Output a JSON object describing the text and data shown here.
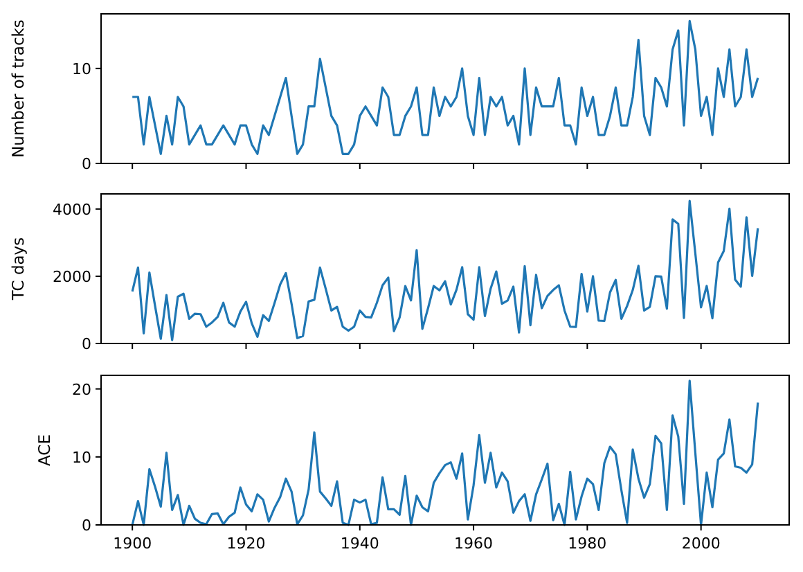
{
  "chart_data": [
    {
      "type": "line",
      "ylabel": "Number of tracks",
      "tick_labels": "y",
      "xlim": [
        1894.5,
        2015.5
      ],
      "ylim": [
        0,
        15.75
      ],
      "xticks": [
        {
          "value": 1900,
          "label": null
        },
        {
          "value": 1920,
          "label": null
        },
        {
          "value": 1940,
          "label": null
        },
        {
          "value": 1960,
          "label": null
        },
        {
          "value": 1980,
          "label": null
        },
        {
          "value": 2000,
          "label": null
        }
      ],
      "yticks": [
        0,
        10
      ],
      "x": [
        1900,
        1901,
        1902,
        1903,
        1904,
        1905,
        1906,
        1907,
        1908,
        1909,
        1910,
        1911,
        1912,
        1913,
        1914,
        1915,
        1916,
        1917,
        1918,
        1919,
        1920,
        1921,
        1922,
        1923,
        1924,
        1925,
        1926,
        1927,
        1928,
        1929,
        1930,
        1931,
        1932,
        1933,
        1934,
        1935,
        1936,
        1937,
        1938,
        1939,
        1940,
        1941,
        1942,
        1943,
        1944,
        1945,
        1946,
        1947,
        1948,
        1949,
        1950,
        1951,
        1952,
        1953,
        1954,
        1955,
        1956,
        1957,
        1958,
        1959,
        1960,
        1961,
        1962,
        1963,
        1964,
        1965,
        1966,
        1967,
        1968,
        1969,
        1970,
        1971,
        1972,
        1973,
        1974,
        1975,
        1976,
        1977,
        1978,
        1979,
        1980,
        1981,
        1982,
        1983,
        1984,
        1985,
        1986,
        1987,
        1988,
        1989,
        1990,
        1991,
        1992,
        1993,
        1994,
        1995,
        1996,
        1997,
        1998,
        1999,
        2000,
        2001,
        2002,
        2003,
        2004,
        2005,
        2006,
        2007,
        2008,
        2009,
        2010
      ],
      "series": [
        {
          "color": "#1f77b4",
          "values": [
            7,
            7,
            2,
            7,
            4,
            1,
            5,
            2,
            7,
            6,
            2,
            3,
            4,
            2,
            2,
            3,
            4,
            3,
            2,
            4,
            4,
            2,
            1,
            4,
            3,
            5,
            7,
            9,
            5,
            1,
            2,
            6,
            6,
            11,
            8,
            5,
            4,
            1,
            1,
            2,
            5,
            6,
            5,
            4,
            8,
            7,
            3,
            3,
            5,
            6,
            8,
            3,
            3,
            8,
            5,
            7,
            6,
            7,
            10,
            5,
            3,
            9,
            3,
            7,
            6,
            7,
            4,
            5,
            2,
            10,
            3,
            8,
            6,
            6,
            6,
            9,
            4,
            4,
            2,
            8,
            5,
            7,
            3,
            3,
            5,
            8,
            4,
            4,
            7,
            13,
            5,
            3,
            9,
            8,
            6,
            12,
            14,
            4,
            15,
            12,
            5,
            7,
            3,
            10,
            7,
            12,
            6,
            7,
            12,
            7,
            9
          ]
        }
      ]
    },
    {
      "type": "line",
      "ylabel": "TC days",
      "tick_labels": "y",
      "xlim": [
        1894.5,
        2015.5
      ],
      "ylim": [
        0,
        4450
      ],
      "xticks": [
        {
          "value": 1900,
          "label": null
        },
        {
          "value": 1920,
          "label": null
        },
        {
          "value": 1940,
          "label": null
        },
        {
          "value": 1960,
          "label": null
        },
        {
          "value": 1980,
          "label": null
        },
        {
          "value": 2000,
          "label": null
        }
      ],
      "yticks": [
        0,
        2000,
        4000
      ],
      "x": [
        1900,
        1901,
        1902,
        1903,
        1904,
        1905,
        1906,
        1907,
        1908,
        1909,
        1910,
        1911,
        1912,
        1913,
        1914,
        1915,
        1916,
        1917,
        1918,
        1919,
        1920,
        1921,
        1922,
        1923,
        1924,
        1925,
        1926,
        1927,
        1928,
        1929,
        1930,
        1931,
        1932,
        1933,
        1934,
        1935,
        1936,
        1937,
        1938,
        1939,
        1940,
        1941,
        1942,
        1943,
        1944,
        1945,
        1946,
        1947,
        1948,
        1949,
        1950,
        1951,
        1952,
        1953,
        1954,
        1955,
        1956,
        1957,
        1958,
        1959,
        1960,
        1961,
        1962,
        1963,
        1964,
        1965,
        1966,
        1967,
        1968,
        1969,
        1970,
        1971,
        1972,
        1973,
        1974,
        1975,
        1976,
        1977,
        1978,
        1979,
        1980,
        1981,
        1982,
        1983,
        1984,
        1985,
        1986,
        1987,
        1988,
        1989,
        1990,
        1991,
        1992,
        1993,
        1994,
        1995,
        1996,
        1997,
        1998,
        1999,
        2000,
        2001,
        2002,
        2003,
        2004,
        2005,
        2006,
        2007,
        2008,
        2009,
        2010
      ],
      "series": [
        {
          "color": "#1f77b4",
          "values": [
            1550,
            2260,
            300,
            2110,
            1115,
            140,
            1440,
            100,
            1390,
            1480,
            735,
            885,
            870,
            500,
            625,
            790,
            1210,
            625,
            500,
            950,
            1240,
            600,
            200,
            840,
            670,
            1200,
            1755,
            2095,
            1180,
            160,
            220,
            1250,
            1300,
            2260,
            1630,
            980,
            1090,
            500,
            380,
            500,
            980,
            790,
            775,
            1210,
            1730,
            1960,
            370,
            775,
            1710,
            1280,
            2775,
            435,
            1050,
            1710,
            1580,
            1850,
            1160,
            1600,
            2270,
            870,
            710,
            2270,
            815,
            1630,
            2140,
            1180,
            1280,
            1690,
            325,
            2300,
            545,
            2040,
            1050,
            1415,
            1590,
            1730,
            980,
            500,
            490,
            2070,
            950,
            2000,
            680,
            670,
            1520,
            1890,
            735,
            1115,
            1590,
            2310,
            980,
            1090,
            2000,
            1990,
            1035,
            3690,
            3560,
            760,
            4240,
            2680,
            1075,
            1710,
            750,
            2410,
            2750,
            4010,
            1900,
            1690,
            3755,
            2010,
            3430
          ]
        }
      ]
    },
    {
      "type": "line",
      "ylabel": "ACE",
      "xlim": [
        1894.5,
        2015.5
      ],
      "ylim": [
        0,
        22
      ],
      "xticks": [
        1900,
        1920,
        1940,
        1960,
        1980,
        2000
      ],
      "yticks": [
        0,
        10,
        20
      ],
      "x": [
        1900,
        1901,
        1902,
        1903,
        1904,
        1905,
        1906,
        1907,
        1908,
        1909,
        1910,
        1911,
        1912,
        1913,
        1914,
        1915,
        1916,
        1917,
        1918,
        1919,
        1920,
        1921,
        1922,
        1923,
        1924,
        1925,
        1926,
        1927,
        1928,
        1929,
        1930,
        1931,
        1932,
        1933,
        1934,
        1935,
        1936,
        1937,
        1938,
        1939,
        1940,
        1941,
        1942,
        1943,
        1944,
        1945,
        1946,
        1947,
        1948,
        1949,
        1950,
        1951,
        1952,
        1953,
        1954,
        1955,
        1956,
        1957,
        1958,
        1959,
        1960,
        1961,
        1962,
        1963,
        1964,
        1965,
        1966,
        1967,
        1968,
        1969,
        1970,
        1971,
        1972,
        1973,
        1974,
        1975,
        1976,
        1977,
        1978,
        1979,
        1980,
        1981,
        1982,
        1983,
        1984,
        1985,
        1986,
        1987,
        1988,
        1989,
        1990,
        1991,
        1992,
        1993,
        1994,
        1995,
        1996,
        1997,
        1998,
        1999,
        2000,
        2001,
        2002,
        2003,
        2004,
        2005,
        2006,
        2007,
        2008,
        2009,
        2010
      ],
      "series": [
        {
          "color": "#1f77b4",
          "values": [
            0,
            3.5,
            0,
            8.2,
            5.6,
            2.7,
            10.6,
            2.2,
            4.4,
            0,
            2.8,
            0.9,
            0.3,
            0.1,
            1.6,
            1.7,
            0.1,
            1.2,
            1.8,
            5.5,
            3,
            2,
            4.5,
            3.7,
            0.5,
            2.5,
            4.1,
            6.8,
            4.9,
            0.1,
            1.4,
            5.2,
            13.6,
            4.9,
            3.9,
            2.8,
            6.4,
            0.3,
            0,
            3.7,
            3.3,
            3.7,
            0.1,
            0.3,
            7,
            2.3,
            2.3,
            1.5,
            7.2,
            0,
            4.3,
            2.6,
            2,
            6.2,
            7.6,
            8.8,
            9.2,
            6.8,
            10.5,
            0.8,
            5.8,
            13.2,
            6.2,
            10.6,
            5.5,
            7.7,
            6.4,
            1.8,
            3.5,
            4.5,
            0.6,
            4.5,
            6.7,
            9,
            0.7,
            3.1,
            0,
            7.8,
            0.8,
            4.2,
            6.8,
            6,
            2.2,
            9.1,
            11.5,
            10.4,
            5.1,
            0.3,
            11.1,
            6.8,
            4,
            6,
            13.1,
            12,
            2.2,
            16.1,
            13,
            3.1,
            21.2,
            10.6,
            0,
            7.7,
            2.6,
            9.6,
            10.5,
            15.5,
            8.6,
            8.4,
            7.7,
            8.9,
            18
          ]
        }
      ]
    }
  ]
}
